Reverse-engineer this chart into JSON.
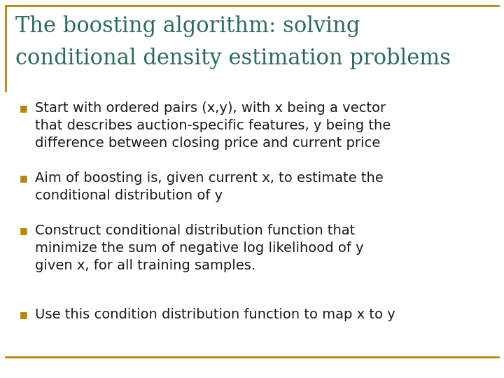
{
  "title_line1": "The boosting algorithm: solving",
  "title_line2": "conditional density estimation problems",
  "title_color": "#2E6B5E",
  "bullet_color": "#B8860B",
  "text_color": "#1A1A1A",
  "background_color": "#FFFFFF",
  "border_color": "#B8860B",
  "bullets": [
    "Start with ordered pairs (x,y), with x being a vector\nthat describes auction-specific features, y being the\ndifference between closing price and current price",
    "Aim of boosting is, given current x, to estimate the\nconditional distribution of y",
    "Construct conditional distribution function that\nminimize the sum of negative log likelihood of y\ngiven x, for all training samples.",
    "Use this condition distribution function to map x to y"
  ],
  "title_fontsize": 22,
  "bullet_fontsize": 14,
  "bullet_marker": "■",
  "figwidth": 7.2,
  "figheight": 5.4,
  "dpi": 100
}
